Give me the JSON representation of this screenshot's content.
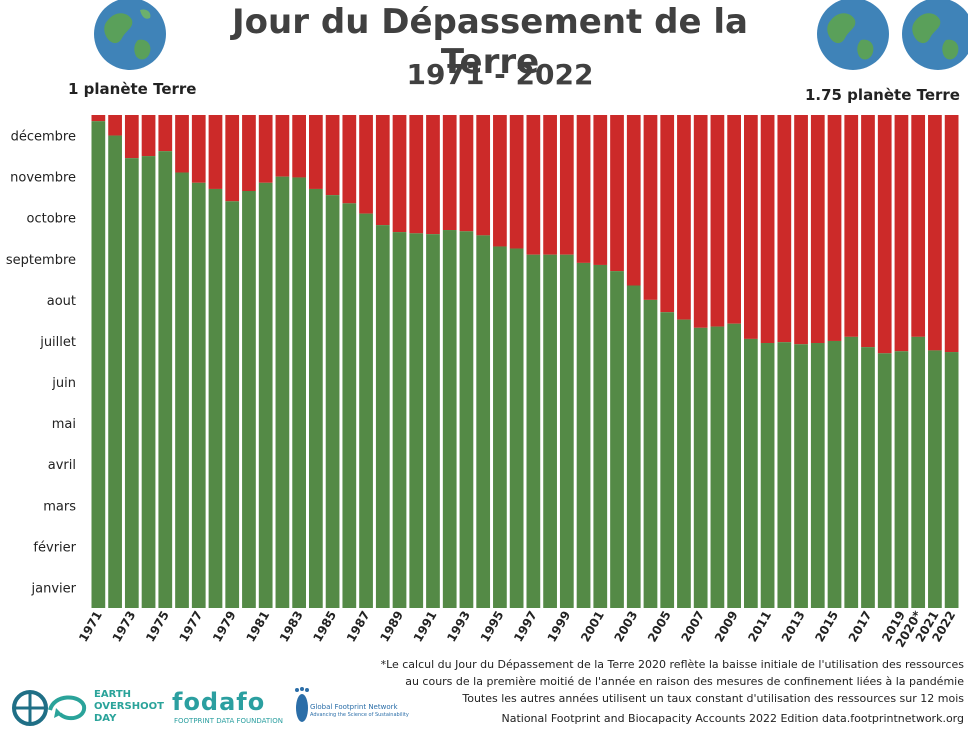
{
  "title": "Jour du Dépassement de la Terre",
  "subtitle": "1971 - 2022",
  "left_label": "1 planète Terre",
  "right_label": "1.75 planète Terre",
  "footnote": [
    "*Le calcul du Jour du Dépassement de la Terre 2020 reflète la baisse initiale de l'utilisation des ressources",
    "au cours de la première moitié de l'année en raison des mesures de confinement liées à la pandémie",
    "Toutes les autres années utilisent un taux constant d'utilisation des ressources sur 12 mois"
  ],
  "source": "National Footprint and Biocapacity Accounts 2022  Edition data.footprintnetwork.org",
  "logos": {
    "earth_overshoot_day": [
      "EARTH",
      "OVERSHOOT",
      "DAY"
    ],
    "fodafo": "fodafo",
    "fodafo_sub": "FOOTPRINT DATA FOUNDATION",
    "gfn": "Global Footprint Network",
    "gfn_tagline": "Advancing the Science of Sustainability"
  },
  "colors": {
    "green": "#548a46",
    "red": "#cc2a29",
    "globe_ocean": "#3f83b8",
    "globe_land": "#5aa05a"
  },
  "chart_data": {
    "type": "bar",
    "stacked": true,
    "x": [
      1971,
      1972,
      1973,
      1974,
      1975,
      1976,
      1977,
      1978,
      1979,
      1980,
      1981,
      1982,
      1983,
      1984,
      1985,
      1986,
      1987,
      1988,
      1989,
      1990,
      1991,
      1992,
      1993,
      1994,
      1995,
      1996,
      1997,
      1998,
      1999,
      2000,
      2001,
      2002,
      2003,
      2004,
      2005,
      2006,
      2007,
      2008,
      2009,
      2010,
      2011,
      2012,
      2013,
      2014,
      2015,
      2016,
      2017,
      2018,
      2019,
      2020,
      2021,
      2022
    ],
    "x_tick_labels": [
      "1971",
      "1973",
      "1975",
      "1977",
      "1979",
      "1981",
      "1983",
      "1985",
      "1987",
      "1989",
      "1991",
      "1993",
      "1995",
      "1997",
      "1999",
      "2001",
      "2003",
      "2005",
      "2007",
      "2009",
      "2011",
      "2013",
      "2015",
      "2017",
      "2019",
      "2020*",
      "2021",
      "2022"
    ],
    "y_tick_labels": [
      "janvier",
      "février",
      "mars",
      "avril",
      "mai",
      "juin",
      "juillet",
      "aout",
      "septembre",
      "octobre",
      "novembre",
      "décembre"
    ],
    "ylim": [
      0,
      12
    ],
    "values": [
      11.85,
      11.5,
      10.95,
      11.0,
      11.12,
      10.6,
      10.35,
      10.2,
      9.9,
      10.15,
      10.35,
      10.5,
      10.48,
      10.2,
      10.05,
      9.85,
      9.6,
      9.32,
      9.15,
      9.12,
      9.1,
      9.2,
      9.17,
      9.07,
      8.8,
      8.75,
      8.6,
      8.6,
      8.6,
      8.4,
      8.35,
      8.2,
      7.85,
      7.5,
      7.2,
      7.02,
      6.82,
      6.85,
      6.92,
      6.55,
      6.45,
      6.47,
      6.42,
      6.45,
      6.5,
      6.6,
      6.35,
      6.2,
      6.25,
      6.6,
      6.27,
      6.23
    ],
    "series": [
      {
        "name": "",
        "color": "#548a46"
      },
      {
        "name": "",
        "color": "#cc2a29"
      }
    ]
  }
}
